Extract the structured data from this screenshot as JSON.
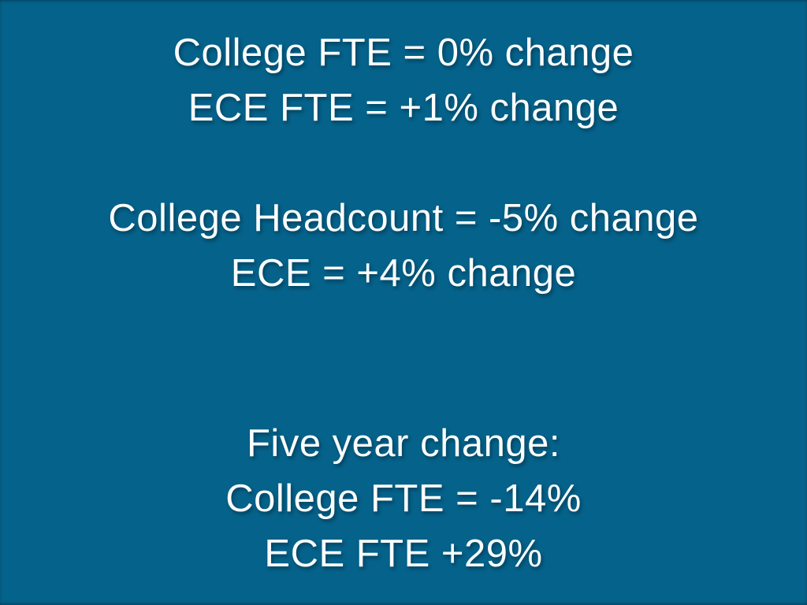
{
  "slide": {
    "background_color": "#05628A",
    "text_color": "#FAFDFD",
    "blocks": [
      {
        "name": "one-year-fte-change",
        "lines": [
          "College FTE = 0% change",
          "ECE FTE = +1% change"
        ]
      },
      {
        "name": "headcount-change",
        "lines": [
          "College Headcount = -5% change",
          "ECE = +4% change"
        ]
      },
      {
        "name": "five-year-change",
        "lines": [
          "Five year change:",
          "College FTE = -14%",
          "ECE FTE +29%"
        ]
      }
    ]
  }
}
